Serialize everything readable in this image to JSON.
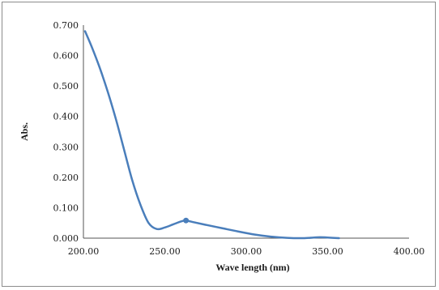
{
  "chart_data": {
    "type": "line",
    "title": "",
    "xlabel": "Wave length (nm)",
    "ylabel": "Abs.",
    "xlim": [
      200,
      400
    ],
    "ylim": [
      0,
      0.7
    ],
    "x_ticks": [
      "200.00",
      "250.00",
      "300.00",
      "350.00",
      "400.00"
    ],
    "y_ticks": [
      "0.000",
      "0.100",
      "0.200",
      "0.300",
      "0.400",
      "0.500",
      "0.600",
      "0.700"
    ],
    "grid": false,
    "legend": "none",
    "series": [
      {
        "color": "#4a7ebb",
        "x": [
          201,
          205,
          210,
          215,
          220,
          225,
          230,
          235,
          240,
          245,
          250,
          255,
          260,
          263,
          268,
          275,
          285,
          295,
          305,
          315,
          325,
          335,
          345,
          350,
          357
        ],
        "y": [
          0.68,
          0.63,
          0.56,
          0.48,
          0.39,
          0.29,
          0.19,
          0.11,
          0.05,
          0.03,
          0.035,
          0.045,
          0.055,
          0.058,
          0.052,
          0.044,
          0.033,
          0.022,
          0.012,
          0.005,
          0.001,
          0.0,
          0.003,
          0.002,
          0.0
        ],
        "marker": {
          "x": 263,
          "y": 0.058
        }
      }
    ]
  }
}
